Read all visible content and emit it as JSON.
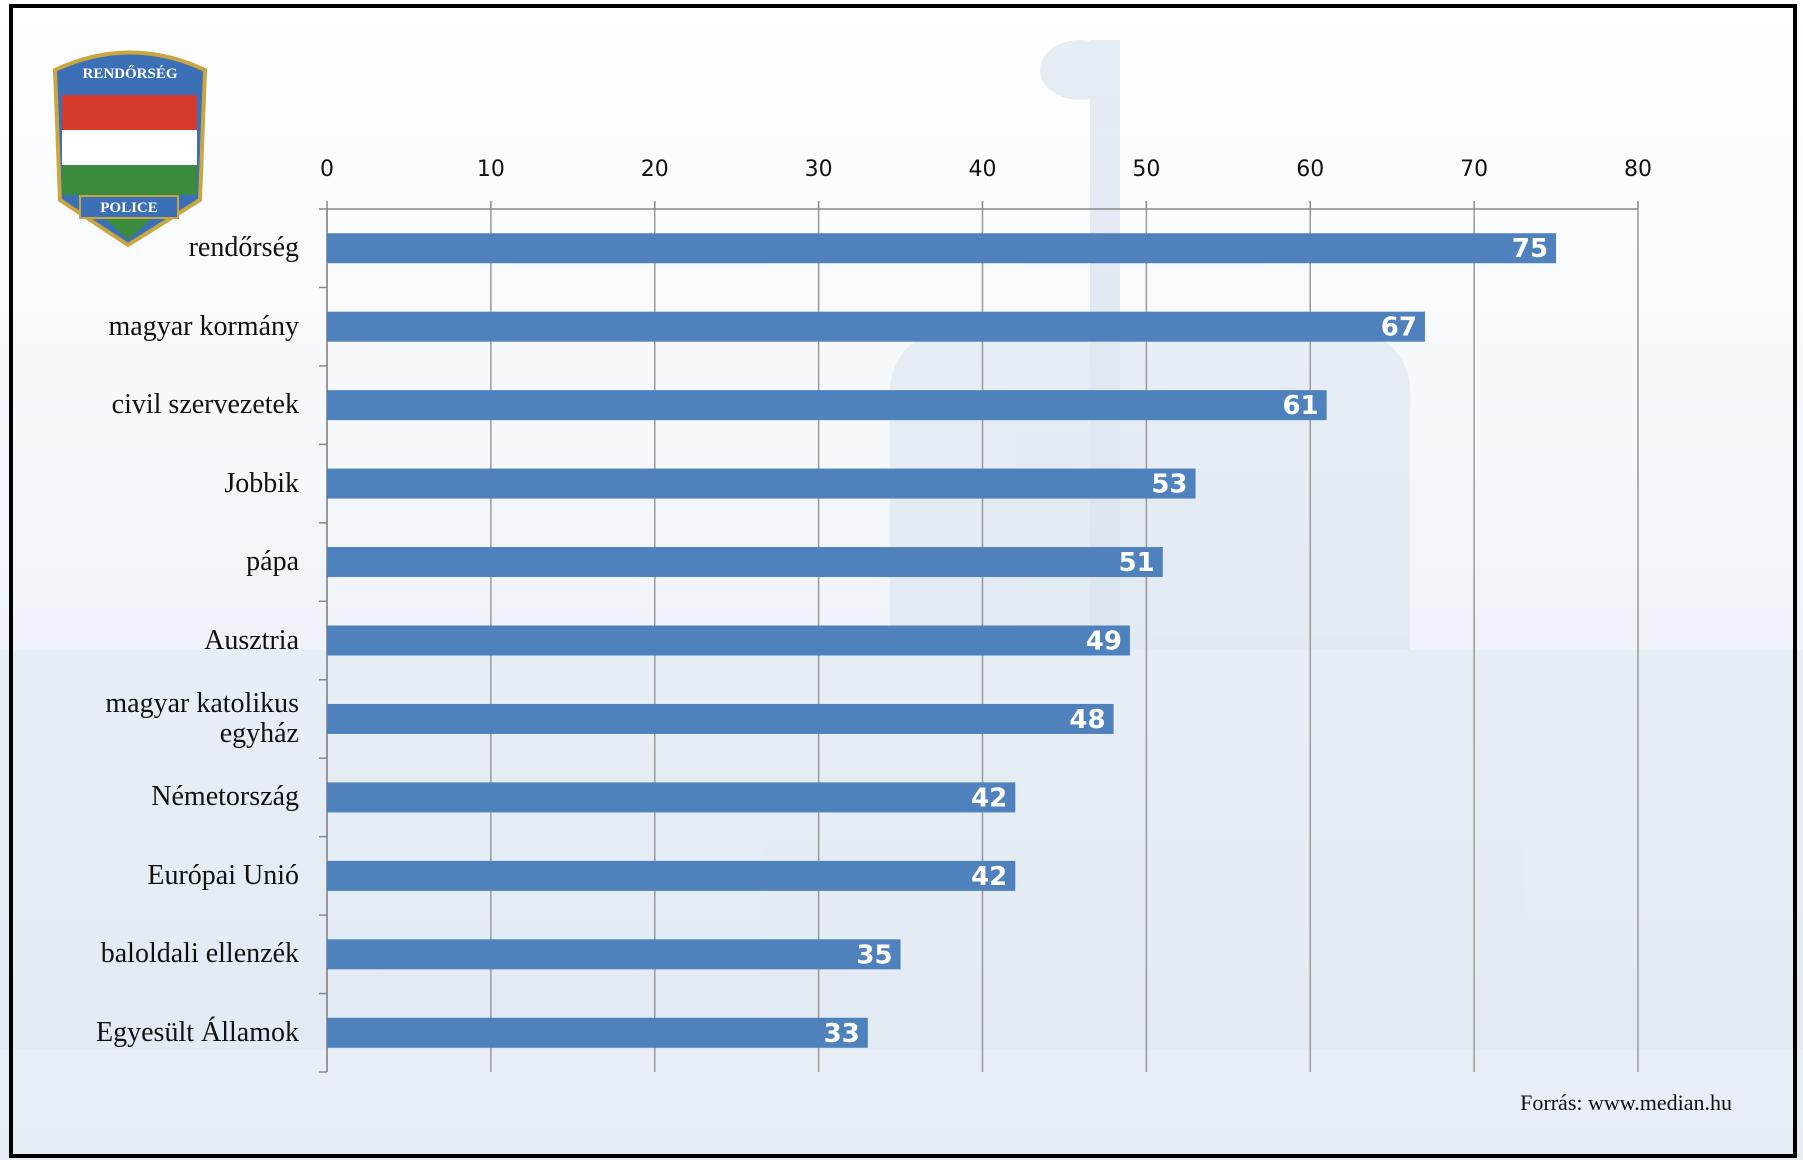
{
  "chart_data": {
    "type": "bar",
    "orientation": "horizontal",
    "categories": [
      "rendőrség",
      "magyar kormány",
      "civil szervezetek",
      "Jobbik",
      "pápa",
      "Ausztria",
      "magyar katolikus egyház",
      "Németország",
      "Európai Unió",
      "baloldali ellenzék",
      "Egyesült Államok"
    ],
    "values": [
      75,
      67,
      61,
      53,
      51,
      49,
      48,
      42,
      42,
      35,
      33
    ],
    "color": "#4f81bd",
    "xlim": [
      0,
      80
    ],
    "xticks": [
      0,
      10,
      20,
      30,
      40,
      50,
      60,
      70,
      80
    ],
    "grid": true,
    "source": "Forrás: www.median.hu"
  },
  "logo": {
    "top": "RENDŐRSÉG",
    "bottom": "POLICE"
  }
}
